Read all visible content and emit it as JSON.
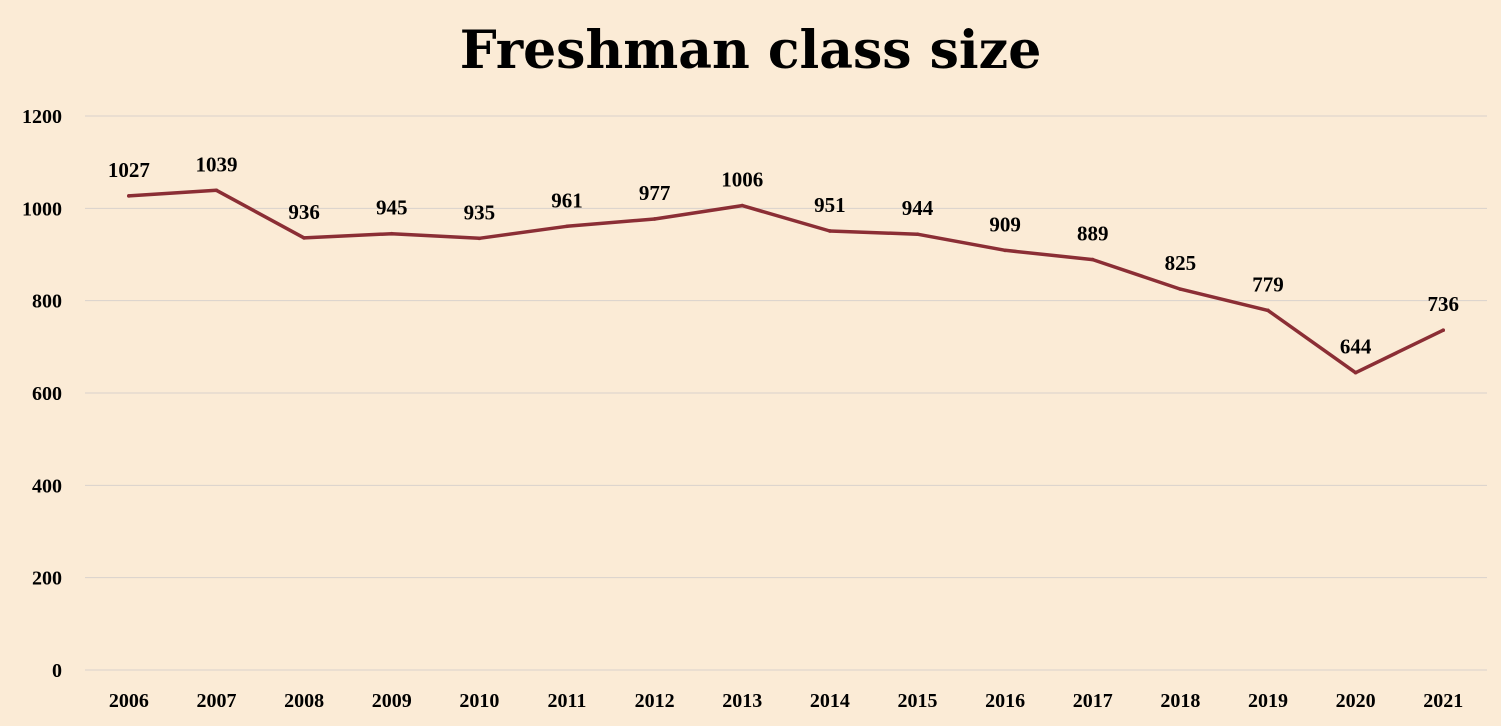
{
  "chart_data": {
    "type": "line",
    "title": "Freshman class size",
    "xlabel": "",
    "ylabel": "",
    "categories": [
      "2006",
      "2007",
      "2008",
      "2009",
      "2010",
      "2011",
      "2012",
      "2013",
      "2014",
      "2015",
      "2016",
      "2017",
      "2018",
      "2019",
      "2020",
      "2021"
    ],
    "series": [
      {
        "values": [
          1027,
          1039,
          936,
          945,
          935,
          961,
          977,
          1006,
          951,
          944,
          909,
          889,
          825,
          779,
          644,
          736
        ],
        "color": "#8b2e35"
      }
    ],
    "ylim": [
      0,
      1200
    ],
    "yticks": [
      0,
      200,
      400,
      600,
      800,
      1000,
      1200
    ],
    "grid": true,
    "legend": "none",
    "data_labels": true
  },
  "colors": {
    "background": "#fbebd6",
    "gridline": "#d9d2cc",
    "text": "#000000"
  }
}
